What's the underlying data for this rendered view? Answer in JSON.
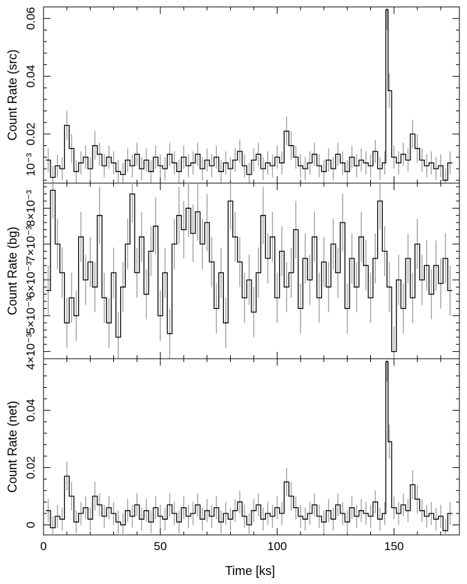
{
  "chart_data": [
    {
      "type": "line",
      "panel": "src",
      "ylabel": "Count Rate (src)",
      "ylim": [
        0.003,
        0.064
      ],
      "yticks": [
        0.02,
        0.04,
        0.06
      ],
      "ytick_labels": [
        "0.02",
        "0.04",
        "0.06"
      ],
      "ytick_extra_label": "10⁻³",
      "x": [
        2,
        4,
        6,
        8,
        10,
        12,
        14,
        16,
        18,
        20,
        22,
        24,
        26,
        28,
        30,
        32,
        34,
        36,
        38,
        40,
        42,
        44,
        46,
        48,
        50,
        52,
        54,
        56,
        58,
        60,
        62,
        64,
        66,
        68,
        70,
        72,
        74,
        76,
        78,
        80,
        82,
        84,
        86,
        88,
        90,
        92,
        94,
        96,
        98,
        100,
        102,
        104,
        106,
        108,
        110,
        112,
        114,
        116,
        118,
        120,
        122,
        124,
        126,
        128,
        130,
        132,
        134,
        136,
        138,
        140,
        142,
        144,
        146,
        147,
        148,
        150,
        152,
        154,
        156,
        158,
        160,
        162,
        164,
        166,
        168,
        170,
        172,
        174
      ],
      "values": [
        0.011,
        0.005,
        0.009,
        0.008,
        0.023,
        0.015,
        0.007,
        0.01,
        0.012,
        0.008,
        0.016,
        0.013,
        0.009,
        0.012,
        0.01,
        0.007,
        0.006,
        0.011,
        0.009,
        0.013,
        0.008,
        0.011,
        0.007,
        0.012,
        0.009,
        0.008,
        0.013,
        0.01,
        0.007,
        0.012,
        0.009,
        0.01,
        0.013,
        0.008,
        0.011,
        0.009,
        0.012,
        0.007,
        0.01,
        0.008,
        0.011,
        0.014,
        0.009,
        0.006,
        0.011,
        0.013,
        0.008,
        0.01,
        0.009,
        0.012,
        0.01,
        0.021,
        0.016,
        0.012,
        0.009,
        0.008,
        0.01,
        0.013,
        0.009,
        0.007,
        0.011,
        0.008,
        0.013,
        0.01,
        0.007,
        0.012,
        0.009,
        0.011,
        0.01,
        0.009,
        0.014,
        0.008,
        0.01,
        0.063,
        0.035,
        0.012,
        0.01,
        0.013,
        0.011,
        0.02,
        0.015,
        0.011,
        0.009,
        0.01,
        0.008,
        0.009,
        0.004,
        0.01
      ],
      "errors": [
        0.004,
        0.004,
        0.004,
        0.004,
        0.005,
        0.005,
        0.004,
        0.004,
        0.004,
        0.004,
        0.005,
        0.004,
        0.004,
        0.004,
        0.004,
        0.004,
        0.004,
        0.004,
        0.004,
        0.004,
        0.004,
        0.004,
        0.004,
        0.004,
        0.004,
        0.004,
        0.004,
        0.004,
        0.004,
        0.004,
        0.004,
        0.004,
        0.004,
        0.004,
        0.004,
        0.004,
        0.004,
        0.004,
        0.004,
        0.004,
        0.004,
        0.004,
        0.004,
        0.004,
        0.004,
        0.004,
        0.004,
        0.004,
        0.004,
        0.004,
        0.004,
        0.005,
        0.005,
        0.004,
        0.004,
        0.004,
        0.004,
        0.004,
        0.004,
        0.004,
        0.004,
        0.004,
        0.004,
        0.004,
        0.004,
        0.004,
        0.004,
        0.004,
        0.004,
        0.004,
        0.004,
        0.004,
        0.004,
        0.007,
        0.006,
        0.004,
        0.004,
        0.004,
        0.004,
        0.005,
        0.005,
        0.004,
        0.004,
        0.004,
        0.004,
        0.004,
        0.004,
        0.004
      ]
    },
    {
      "type": "line",
      "panel": "bg",
      "ylabel": "Count Rate (bg)",
      "ylim": [
        0.0038,
        0.0087
      ],
      "yticks": [
        0.004,
        0.005,
        0.006,
        0.007,
        0.008
      ],
      "ytick_labels": [
        "4×10⁻³",
        "5×10⁻³",
        "6×10⁻³",
        "7×10⁻³",
        "8×10⁻³"
      ],
      "x": [
        2,
        4,
        6,
        8,
        10,
        12,
        14,
        16,
        18,
        20,
        22,
        24,
        26,
        28,
        30,
        32,
        34,
        36,
        38,
        40,
        42,
        44,
        46,
        48,
        50,
        52,
        54,
        56,
        58,
        60,
        62,
        64,
        66,
        68,
        70,
        72,
        74,
        76,
        78,
        80,
        82,
        84,
        86,
        88,
        90,
        92,
        94,
        96,
        98,
        100,
        102,
        104,
        106,
        108,
        110,
        112,
        114,
        116,
        118,
        120,
        122,
        124,
        126,
        128,
        130,
        132,
        134,
        136,
        138,
        140,
        142,
        144,
        146,
        148,
        150,
        152,
        154,
        156,
        158,
        160,
        162,
        164,
        166,
        168,
        170,
        172,
        174
      ],
      "values": [
        0.0057,
        0.0085,
        0.007,
        0.0062,
        0.0048,
        0.0055,
        0.005,
        0.0072,
        0.006,
        0.0065,
        0.0058,
        0.0078,
        0.0055,
        0.0048,
        0.0062,
        0.0044,
        0.0058,
        0.007,
        0.0084,
        0.0062,
        0.0072,
        0.0056,
        0.0068,
        0.0075,
        0.005,
        0.0062,
        0.0045,
        0.007,
        0.0078,
        0.0074,
        0.008,
        0.0073,
        0.0079,
        0.007,
        0.0076,
        0.0065,
        0.0052,
        0.0062,
        0.0048,
        0.0082,
        0.0072,
        0.0065,
        0.0055,
        0.006,
        0.0051,
        0.0062,
        0.0078,
        0.0066,
        0.0072,
        0.0055,
        0.0068,
        0.0058,
        0.0062,
        0.0074,
        0.0052,
        0.0066,
        0.006,
        0.0072,
        0.0055,
        0.0065,
        0.0058,
        0.007,
        0.0062,
        0.0076,
        0.0052,
        0.0066,
        0.0058,
        0.0072,
        0.0064,
        0.0055,
        0.0066,
        0.0082,
        0.0068,
        0.0058,
        0.004,
        0.006,
        0.0052,
        0.0066,
        0.0055,
        0.007,
        0.006,
        0.0064,
        0.0056,
        0.0064,
        0.0059,
        0.0066,
        0.0057
      ],
      "errors": [
        0.0007,
        0.0008,
        0.0007,
        0.0007,
        0.0007,
        0.0007,
        0.0007,
        0.0007,
        0.0007,
        0.0007,
        0.0007,
        0.0008,
        0.0007,
        0.0007,
        0.0007,
        0.0007,
        0.0007,
        0.0007,
        0.0008,
        0.0007,
        0.0007,
        0.0007,
        0.0007,
        0.0008,
        0.0007,
        0.0007,
        0.0007,
        0.0007,
        0.0008,
        0.0008,
        0.0008,
        0.0008,
        0.0008,
        0.0007,
        0.0008,
        0.0007,
        0.0007,
        0.0007,
        0.0007,
        0.0008,
        0.0007,
        0.0007,
        0.0007,
        0.0007,
        0.0007,
        0.0007,
        0.0008,
        0.0007,
        0.0007,
        0.0007,
        0.0007,
        0.0007,
        0.0007,
        0.0008,
        0.0007,
        0.0007,
        0.0007,
        0.0007,
        0.0007,
        0.0007,
        0.0007,
        0.0007,
        0.0007,
        0.0008,
        0.0007,
        0.0007,
        0.0007,
        0.0007,
        0.0007,
        0.0007,
        0.0007,
        0.0008,
        0.0007,
        0.0007,
        0.0007,
        0.0007,
        0.0007,
        0.0007,
        0.0007,
        0.0007,
        0.0007,
        0.0007,
        0.0007,
        0.0007,
        0.0007,
        0.0007,
        0.0007
      ]
    },
    {
      "type": "line",
      "panel": "net",
      "ylabel": "Count Rate (net)",
      "xlabel": "Time [ks]",
      "xlim": [
        0,
        178
      ],
      "xticks": [
        0,
        50,
        100,
        150
      ],
      "ylim": [
        -0.0035,
        0.058
      ],
      "yticks": [
        0,
        0.02,
        0.04
      ],
      "ytick_labels": [
        "0",
        "0.02",
        "0.04"
      ],
      "x": [
        2,
        4,
        6,
        8,
        10,
        12,
        14,
        16,
        18,
        20,
        22,
        24,
        26,
        28,
        30,
        32,
        34,
        36,
        38,
        40,
        42,
        44,
        46,
        48,
        50,
        52,
        54,
        56,
        58,
        60,
        62,
        64,
        66,
        68,
        70,
        72,
        74,
        76,
        78,
        80,
        82,
        84,
        86,
        88,
        90,
        92,
        94,
        96,
        98,
        100,
        102,
        104,
        106,
        108,
        110,
        112,
        114,
        116,
        118,
        120,
        122,
        124,
        126,
        128,
        130,
        132,
        134,
        136,
        138,
        140,
        142,
        144,
        146,
        147,
        148,
        150,
        152,
        154,
        156,
        158,
        160,
        162,
        164,
        166,
        168,
        170,
        172,
        174
      ],
      "values": [
        0.005,
        -0.001,
        0.003,
        0.002,
        0.017,
        0.01,
        0.001,
        0.004,
        0.006,
        0.002,
        0.01,
        0.007,
        0.003,
        0.006,
        0.004,
        0.001,
        0.0,
        0.005,
        0.003,
        0.007,
        0.002,
        0.005,
        0.001,
        0.006,
        0.003,
        0.002,
        0.007,
        0.004,
        0.001,
        0.006,
        0.003,
        0.004,
        0.007,
        0.002,
        0.005,
        0.003,
        0.006,
        0.001,
        0.004,
        0.002,
        0.005,
        0.008,
        0.003,
        0.0,
        0.005,
        0.007,
        0.002,
        0.004,
        0.003,
        0.006,
        0.004,
        0.015,
        0.01,
        0.006,
        0.003,
        0.002,
        0.004,
        0.007,
        0.003,
        0.001,
        0.005,
        0.002,
        0.007,
        0.004,
        0.001,
        0.006,
        0.003,
        0.005,
        0.004,
        0.003,
        0.008,
        0.002,
        0.004,
        0.057,
        0.029,
        0.006,
        0.004,
        0.007,
        0.005,
        0.014,
        0.009,
        0.005,
        0.003,
        0.004,
        0.002,
        0.003,
        -0.002,
        0.004
      ],
      "errors": [
        0.004,
        0.004,
        0.004,
        0.004,
        0.005,
        0.005,
        0.004,
        0.004,
        0.004,
        0.004,
        0.005,
        0.004,
        0.004,
        0.004,
        0.004,
        0.004,
        0.004,
        0.004,
        0.004,
        0.004,
        0.004,
        0.004,
        0.004,
        0.004,
        0.004,
        0.004,
        0.004,
        0.004,
        0.004,
        0.004,
        0.004,
        0.004,
        0.004,
        0.004,
        0.004,
        0.004,
        0.004,
        0.004,
        0.004,
        0.004,
        0.004,
        0.004,
        0.004,
        0.004,
        0.004,
        0.004,
        0.004,
        0.004,
        0.004,
        0.004,
        0.004,
        0.005,
        0.005,
        0.004,
        0.004,
        0.004,
        0.004,
        0.004,
        0.004,
        0.004,
        0.004,
        0.004,
        0.004,
        0.004,
        0.004,
        0.004,
        0.004,
        0.004,
        0.004,
        0.004,
        0.004,
        0.004,
        0.004,
        0.007,
        0.006,
        0.004,
        0.004,
        0.004,
        0.004,
        0.005,
        0.005,
        0.004,
        0.004,
        0.004,
        0.004,
        0.004,
        0.004,
        0.004
      ]
    }
  ],
  "colors": {
    "axes": "#000000",
    "step_line": "#000000",
    "error_bars": "#a0a0a0"
  }
}
